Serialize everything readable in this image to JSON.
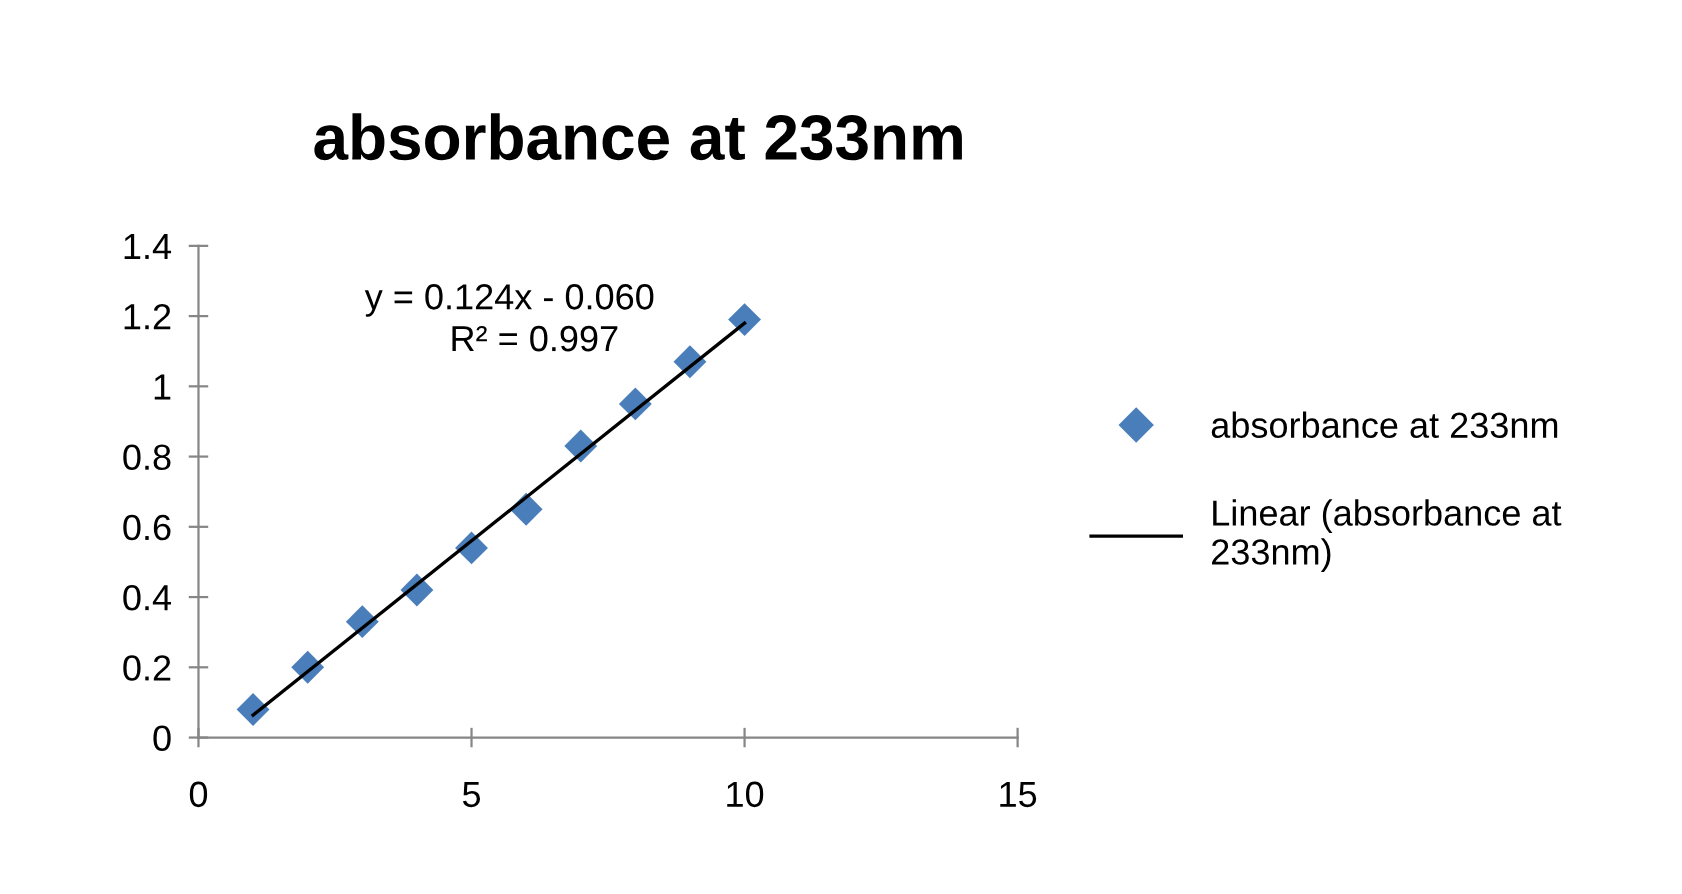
{
  "chart_data": {
    "type": "scatter",
    "title": "absorbance at 233nm",
    "x": [
      1,
      2,
      3,
      4,
      5,
      6,
      7,
      8,
      9,
      10
    ],
    "series": [
      {
        "name": "absorbance at 233nm",
        "color": "#4a7ebb",
        "values": [
          0.08,
          0.2,
          0.33,
          0.42,
          0.54,
          0.65,
          0.83,
          0.95,
          1.07,
          1.19
        ],
        "marker": "diamond"
      },
      {
        "name": "Linear (absorbance at 233nm)",
        "type": "line",
        "color": "#000000",
        "x": [
          1,
          10
        ],
        "values": [
          0.064,
          1.18
        ],
        "marker": "none",
        "line_style": "solid"
      }
    ],
    "annotations": [
      "y = 0.124x - 0.060",
      "R² = 0.997"
    ],
    "xlim": [
      0,
      15
    ],
    "xticks": [
      0,
      5,
      10,
      15
    ],
    "ylim": [
      0,
      1.4
    ],
    "yticks": [
      0,
      0.2,
      0.4,
      0.6,
      0.8,
      1,
      1.2,
      1.4
    ],
    "grid": false,
    "legend": "right"
  }
}
